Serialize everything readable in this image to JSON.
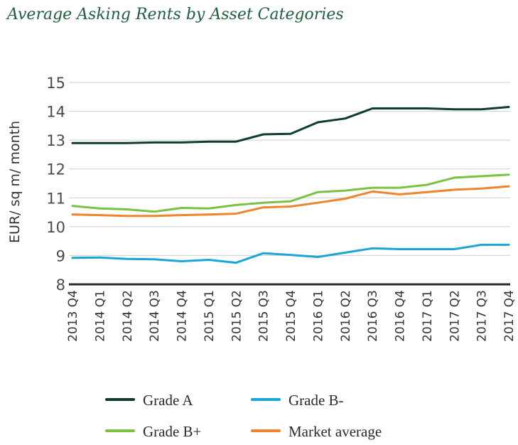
{
  "chart_data": {
    "type": "line",
    "title": "Average Asking Rents by Asset Categories",
    "xlabel": "",
    "ylabel": "EUR/ sq m/ month",
    "ylim": [
      8,
      15
    ],
    "yticks": [
      8,
      9,
      10,
      11,
      12,
      13,
      14,
      15
    ],
    "grid": true,
    "legend_position": "bottom",
    "categories": [
      "2013 Q4",
      "2014 Q1",
      "2014 Q2",
      "2014 Q3",
      "2014 Q4",
      "2015 Q1",
      "2015 Q2",
      "2015 Q3",
      "2015 Q4",
      "2016 Q1",
      "2016 Q2",
      "2016 Q3",
      "2016 Q4",
      "2017 Q1",
      "2017 Q2",
      "2017 Q3",
      "2017 Q4"
    ],
    "series": [
      {
        "name": "Grade A",
        "color": "#0f3d2a",
        "values": [
          12.9,
          12.9,
          12.9,
          12.92,
          12.92,
          12.95,
          12.95,
          13.2,
          13.22,
          13.62,
          13.75,
          14.1,
          14.1,
          14.1,
          14.07,
          14.07,
          14.15
        ]
      },
      {
        "name": "Grade B-",
        "color": "#1aa7d6",
        "values": [
          8.92,
          8.93,
          8.88,
          8.87,
          8.8,
          8.85,
          8.75,
          9.08,
          9.02,
          8.95,
          9.1,
          9.25,
          9.22,
          9.22,
          9.22,
          9.37,
          9.37
        ]
      },
      {
        "name": "Grade B+",
        "color": "#7cc242",
        "values": [
          10.72,
          10.63,
          10.6,
          10.52,
          10.65,
          10.63,
          10.75,
          10.83,
          10.88,
          11.2,
          11.25,
          11.35,
          11.35,
          11.45,
          11.7,
          11.75,
          11.8
        ]
      },
      {
        "name": "Market average",
        "color": "#f0842c",
        "values": [
          10.42,
          10.4,
          10.37,
          10.37,
          10.4,
          10.42,
          10.45,
          10.67,
          10.7,
          10.83,
          10.97,
          11.22,
          11.12,
          11.2,
          11.28,
          11.32,
          11.4
        ]
      }
    ]
  }
}
